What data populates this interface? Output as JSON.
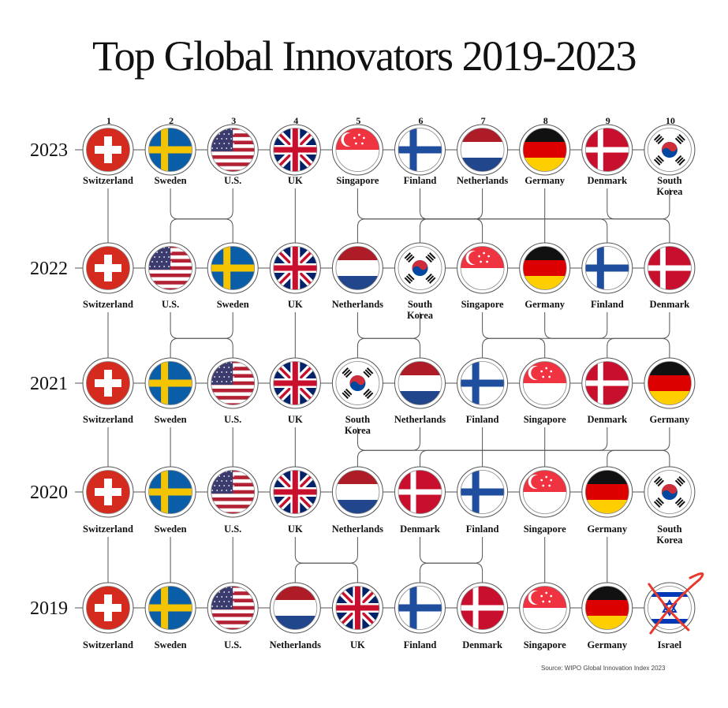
{
  "chart_data": {
    "type": "bump",
    "title": "Top Global Innovators 2019-2023",
    "ranks": [
      "1",
      "2",
      "3",
      "4",
      "5",
      "6",
      "7",
      "8",
      "9",
      "10"
    ],
    "series": [
      {
        "year": "2023",
        "countries": [
          "Switzerland",
          "Sweden",
          "U.S.",
          "UK",
          "Singapore",
          "Finland",
          "Netherlands",
          "Germany",
          "Denmark",
          "South Korea"
        ]
      },
      {
        "year": "2022",
        "countries": [
          "Switzerland",
          "U.S.",
          "Sweden",
          "UK",
          "Netherlands",
          "South Korea",
          "Singapore",
          "Germany",
          "Finland",
          "Denmark"
        ]
      },
      {
        "year": "2021",
        "countries": [
          "Switzerland",
          "Sweden",
          "U.S.",
          "UK",
          "South Korea",
          "Netherlands",
          "Finland",
          "Singapore",
          "Denmark",
          "Germany"
        ]
      },
      {
        "year": "2020",
        "countries": [
          "Switzerland",
          "Sweden",
          "U.S.",
          "UK",
          "Netherlands",
          "Denmark",
          "Finland",
          "Singapore",
          "Germany",
          "South Korea"
        ]
      },
      {
        "year": "2019",
        "countries": [
          "Switzerland",
          "Sweden",
          "U.S.",
          "Netherlands",
          "UK",
          "Finland",
          "Denmark",
          "Singapore",
          "Germany",
          "Israel"
        ]
      }
    ],
    "annotations": [
      {
        "country": "Israel",
        "year": "2019",
        "mark": "red X over flag"
      }
    ],
    "source": "Source: WIPO Global Innovation Index 2023"
  },
  "colors": {
    "line": "#555555",
    "cross": "#e83a2c"
  }
}
